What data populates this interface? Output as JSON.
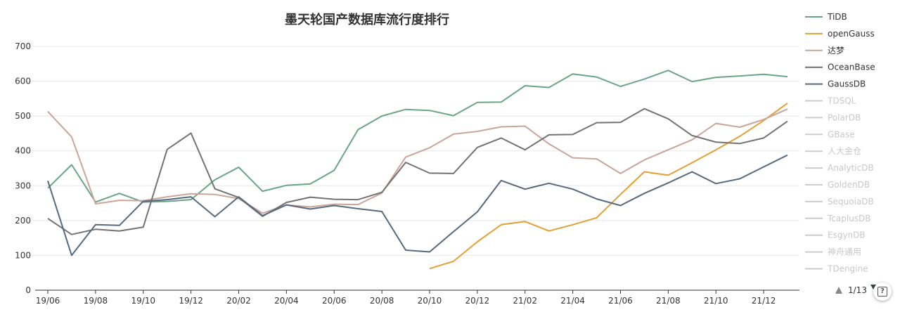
{
  "chart_data": {
    "type": "line",
    "title": "墨天轮国产数据库流行度排行",
    "xlabel": "",
    "ylabel": "",
    "ylim": [
      0,
      700
    ],
    "yticks": [
      0,
      100,
      200,
      300,
      400,
      500,
      600,
      700
    ],
    "grid": true,
    "legend_position": "right",
    "categories": [
      "19/06",
      "19/07",
      "19/08",
      "19/09",
      "19/10",
      "19/11",
      "19/12",
      "20/01",
      "20/02",
      "20/03",
      "20/04",
      "20/05",
      "20/06",
      "20/07",
      "20/08",
      "20/09",
      "20/10",
      "20/11",
      "20/12",
      "21/01",
      "21/02",
      "21/03",
      "21/04",
      "21/05",
      "21/06",
      "21/07",
      "21/08",
      "21/09",
      "21/10",
      "21/11",
      "21/12",
      "22/01"
    ],
    "xtick_labels": [
      "19/06",
      "19/08",
      "19/10",
      "19/12",
      "20/02",
      "20/04",
      "20/06",
      "20/08",
      "20/10",
      "20/12",
      "21/02",
      "21/04",
      "21/06",
      "21/08",
      "21/10",
      "21/12"
    ],
    "series": [
      {
        "name": "TiDB",
        "color": "#6aa587",
        "values": [
          293,
          360,
          253,
          278,
          253,
          255,
          260,
          317,
          353,
          284,
          301,
          305,
          344,
          461,
          500,
          519,
          516,
          501,
          539,
          540,
          587,
          582,
          621,
          612,
          585,
          606,
          631,
          599,
          611,
          615,
          620,
          613
        ]
      },
      {
        "name": "openGauss",
        "color": "#e3a033",
        "values": [
          null,
          null,
          null,
          null,
          null,
          null,
          null,
          null,
          null,
          null,
          null,
          null,
          null,
          null,
          null,
          null,
          62,
          83,
          139,
          188,
          197,
          170,
          188,
          208,
          275,
          340,
          330,
          366,
          403,
          442,
          487,
          537
        ]
      },
      {
        "name": "达梦",
        "color": "#c9a59a",
        "values": [
          513,
          440,
          248,
          258,
          257,
          268,
          277,
          275,
          263,
          221,
          245,
          239,
          247,
          246,
          279,
          382,
          409,
          448,
          456,
          469,
          471,
          420,
          380,
          377,
          335,
          374,
          403,
          432,
          479,
          468,
          490,
          520
        ]
      },
      {
        "name": "OceanBase",
        "color": "#737373",
        "values": [
          206,
          160,
          175,
          170,
          181,
          404,
          451,
          291,
          266,
          212,
          252,
          267,
          261,
          260,
          281,
          367,
          336,
          335,
          410,
          437,
          403,
          446,
          447,
          481,
          482,
          521,
          492,
          444,
          425,
          421,
          437,
          485
        ]
      },
      {
        "name": "GaussDB",
        "color": "#57697d",
        "values": [
          314,
          100,
          188,
          186,
          255,
          260,
          268,
          211,
          268,
          214,
          245,
          233,
          243,
          234,
          226,
          115,
          110,
          168,
          225,
          315,
          290,
          307,
          290,
          262,
          243,
          278,
          308,
          340,
          306,
          320,
          354,
          388
        ]
      }
    ],
    "legend": [
      {
        "name": "TiDB",
        "color": "#6aa587",
        "active": true
      },
      {
        "name": "openGauss",
        "color": "#e3a033",
        "active": true
      },
      {
        "name": "达梦",
        "color": "#c9a59a",
        "active": true
      },
      {
        "name": "OceanBase",
        "color": "#737373",
        "active": true
      },
      {
        "name": "GaussDB",
        "color": "#57697d",
        "active": true
      },
      {
        "name": "TDSQL",
        "color": "#cccccc",
        "active": false
      },
      {
        "name": "PolarDB",
        "color": "#cccccc",
        "active": false
      },
      {
        "name": "GBase",
        "color": "#cccccc",
        "active": false
      },
      {
        "name": "人大金仓",
        "color": "#cccccc",
        "active": false
      },
      {
        "name": "AnalyticDB",
        "color": "#cccccc",
        "active": false
      },
      {
        "name": "GoldenDB",
        "color": "#cccccc",
        "active": false
      },
      {
        "name": "SequoiaDB",
        "color": "#cccccc",
        "active": false
      },
      {
        "name": "TcaplusDB",
        "color": "#cccccc",
        "active": false
      },
      {
        "name": "EsgynDB",
        "color": "#cccccc",
        "active": false
      },
      {
        "name": "神舟通用",
        "color": "#cccccc",
        "active": false
      },
      {
        "name": "TDengine",
        "color": "#cccccc",
        "active": false
      }
    ],
    "legend_pager": "1/13"
  }
}
